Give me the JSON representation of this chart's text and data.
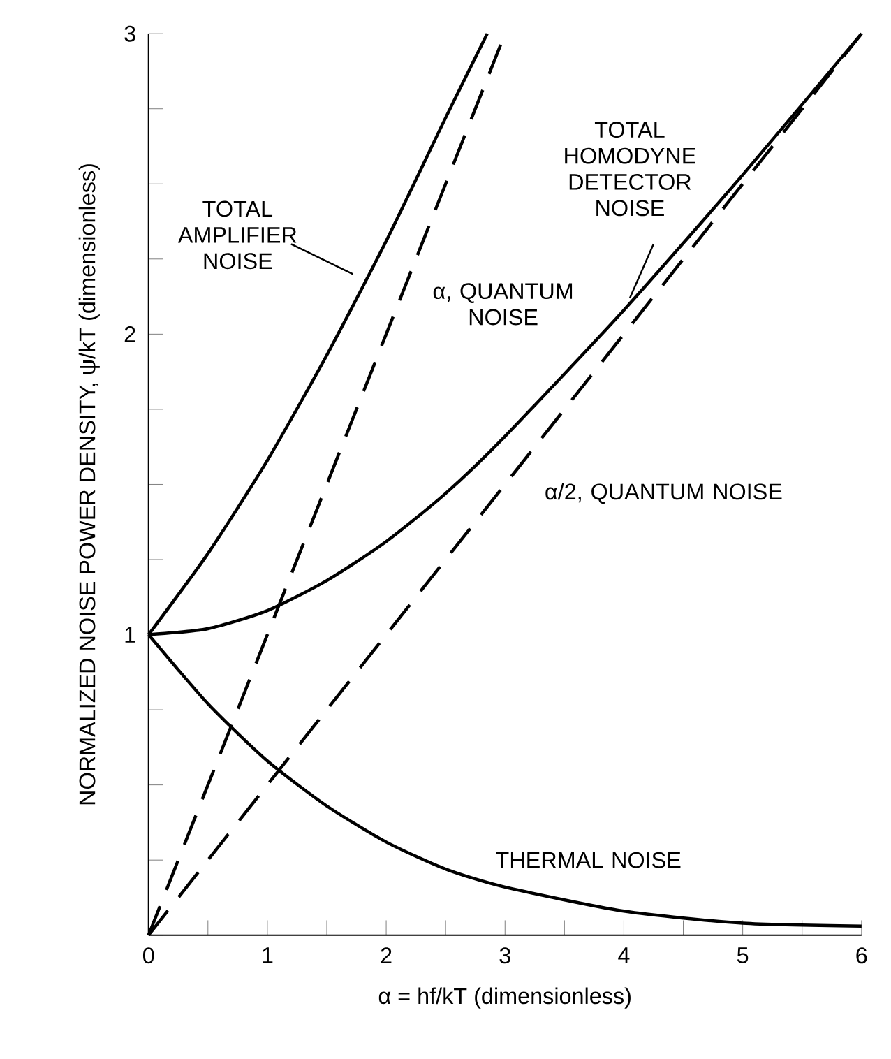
{
  "chart_data": {
    "type": "line",
    "xlabel": "α = hf/kT (dimensionless)",
    "ylabel": "NORMALIZED NOISE POWER DENSITY, ψ/kT (dimensionless)",
    "xlim": [
      0,
      6
    ],
    "ylim": [
      0,
      3
    ],
    "xticks": [
      0,
      {
        "value": 0.5,
        "label": null
      },
      1,
      {
        "value": 1.5,
        "label": null
      },
      2,
      {
        "value": 2.5,
        "label": null
      },
      3,
      {
        "value": 3.5,
        "label": null
      },
      4,
      {
        "value": 4.5,
        "label": null
      },
      5,
      {
        "value": 5.5,
        "label": null
      },
      6
    ],
    "yticks": [
      {
        "value": 0,
        "label": null
      },
      {
        "value": 0.25,
        "label": null
      },
      {
        "value": 0.5,
        "label": null
      },
      {
        "value": 0.75,
        "label": null
      },
      1,
      {
        "value": 1.25,
        "label": null
      },
      {
        "value": 1.5,
        "label": null
      },
      {
        "value": 1.75,
        "label": null
      },
      2,
      {
        "value": 2.25,
        "label": null
      },
      {
        "value": 2.5,
        "label": null
      },
      {
        "value": 2.75,
        "label": null
      },
      3
    ],
    "grid": false,
    "marker": "none",
    "series": [
      {
        "name": "TOTAL AMPLIFIER NOISE",
        "color": "#000000",
        "line_style": "solid",
        "x": [
          0,
          0.5,
          1,
          1.5,
          2,
          2.5,
          2.85
        ],
        "values": [
          1,
          1.27,
          1.58,
          1.93,
          2.31,
          2.72,
          3.0
        ]
      },
      {
        "name": "α, QUANTUM NOISE",
        "color": "#000000",
        "line_style": "dashed",
        "x": [
          0,
          3
        ],
        "values": [
          0,
          3
        ]
      },
      {
        "name": "TOTAL HOMODYNE DETECTOR NOISE",
        "color": "#000000",
        "line_style": "solid",
        "x": [
          0,
          0.5,
          1,
          1.5,
          2,
          2.5,
          3,
          4,
          5,
          6
        ],
        "values": [
          1,
          1.02,
          1.08,
          1.18,
          1.31,
          1.47,
          1.66,
          2.08,
          2.53,
          3.0
        ]
      },
      {
        "name": "α/2, QUANTUM NOISE",
        "color": "#000000",
        "line_style": "dashed",
        "x": [
          0,
          6
        ],
        "values": [
          0,
          3
        ]
      },
      {
        "name": "THERMAL NOISE",
        "color": "#000000",
        "line_style": "solid",
        "x": [
          0,
          0.5,
          1,
          1.5,
          2,
          2.5,
          3,
          4,
          5,
          6
        ],
        "values": [
          1,
          0.77,
          0.58,
          0.43,
          0.31,
          0.22,
          0.16,
          0.08,
          0.04,
          0.03
        ]
      }
    ]
  }
}
